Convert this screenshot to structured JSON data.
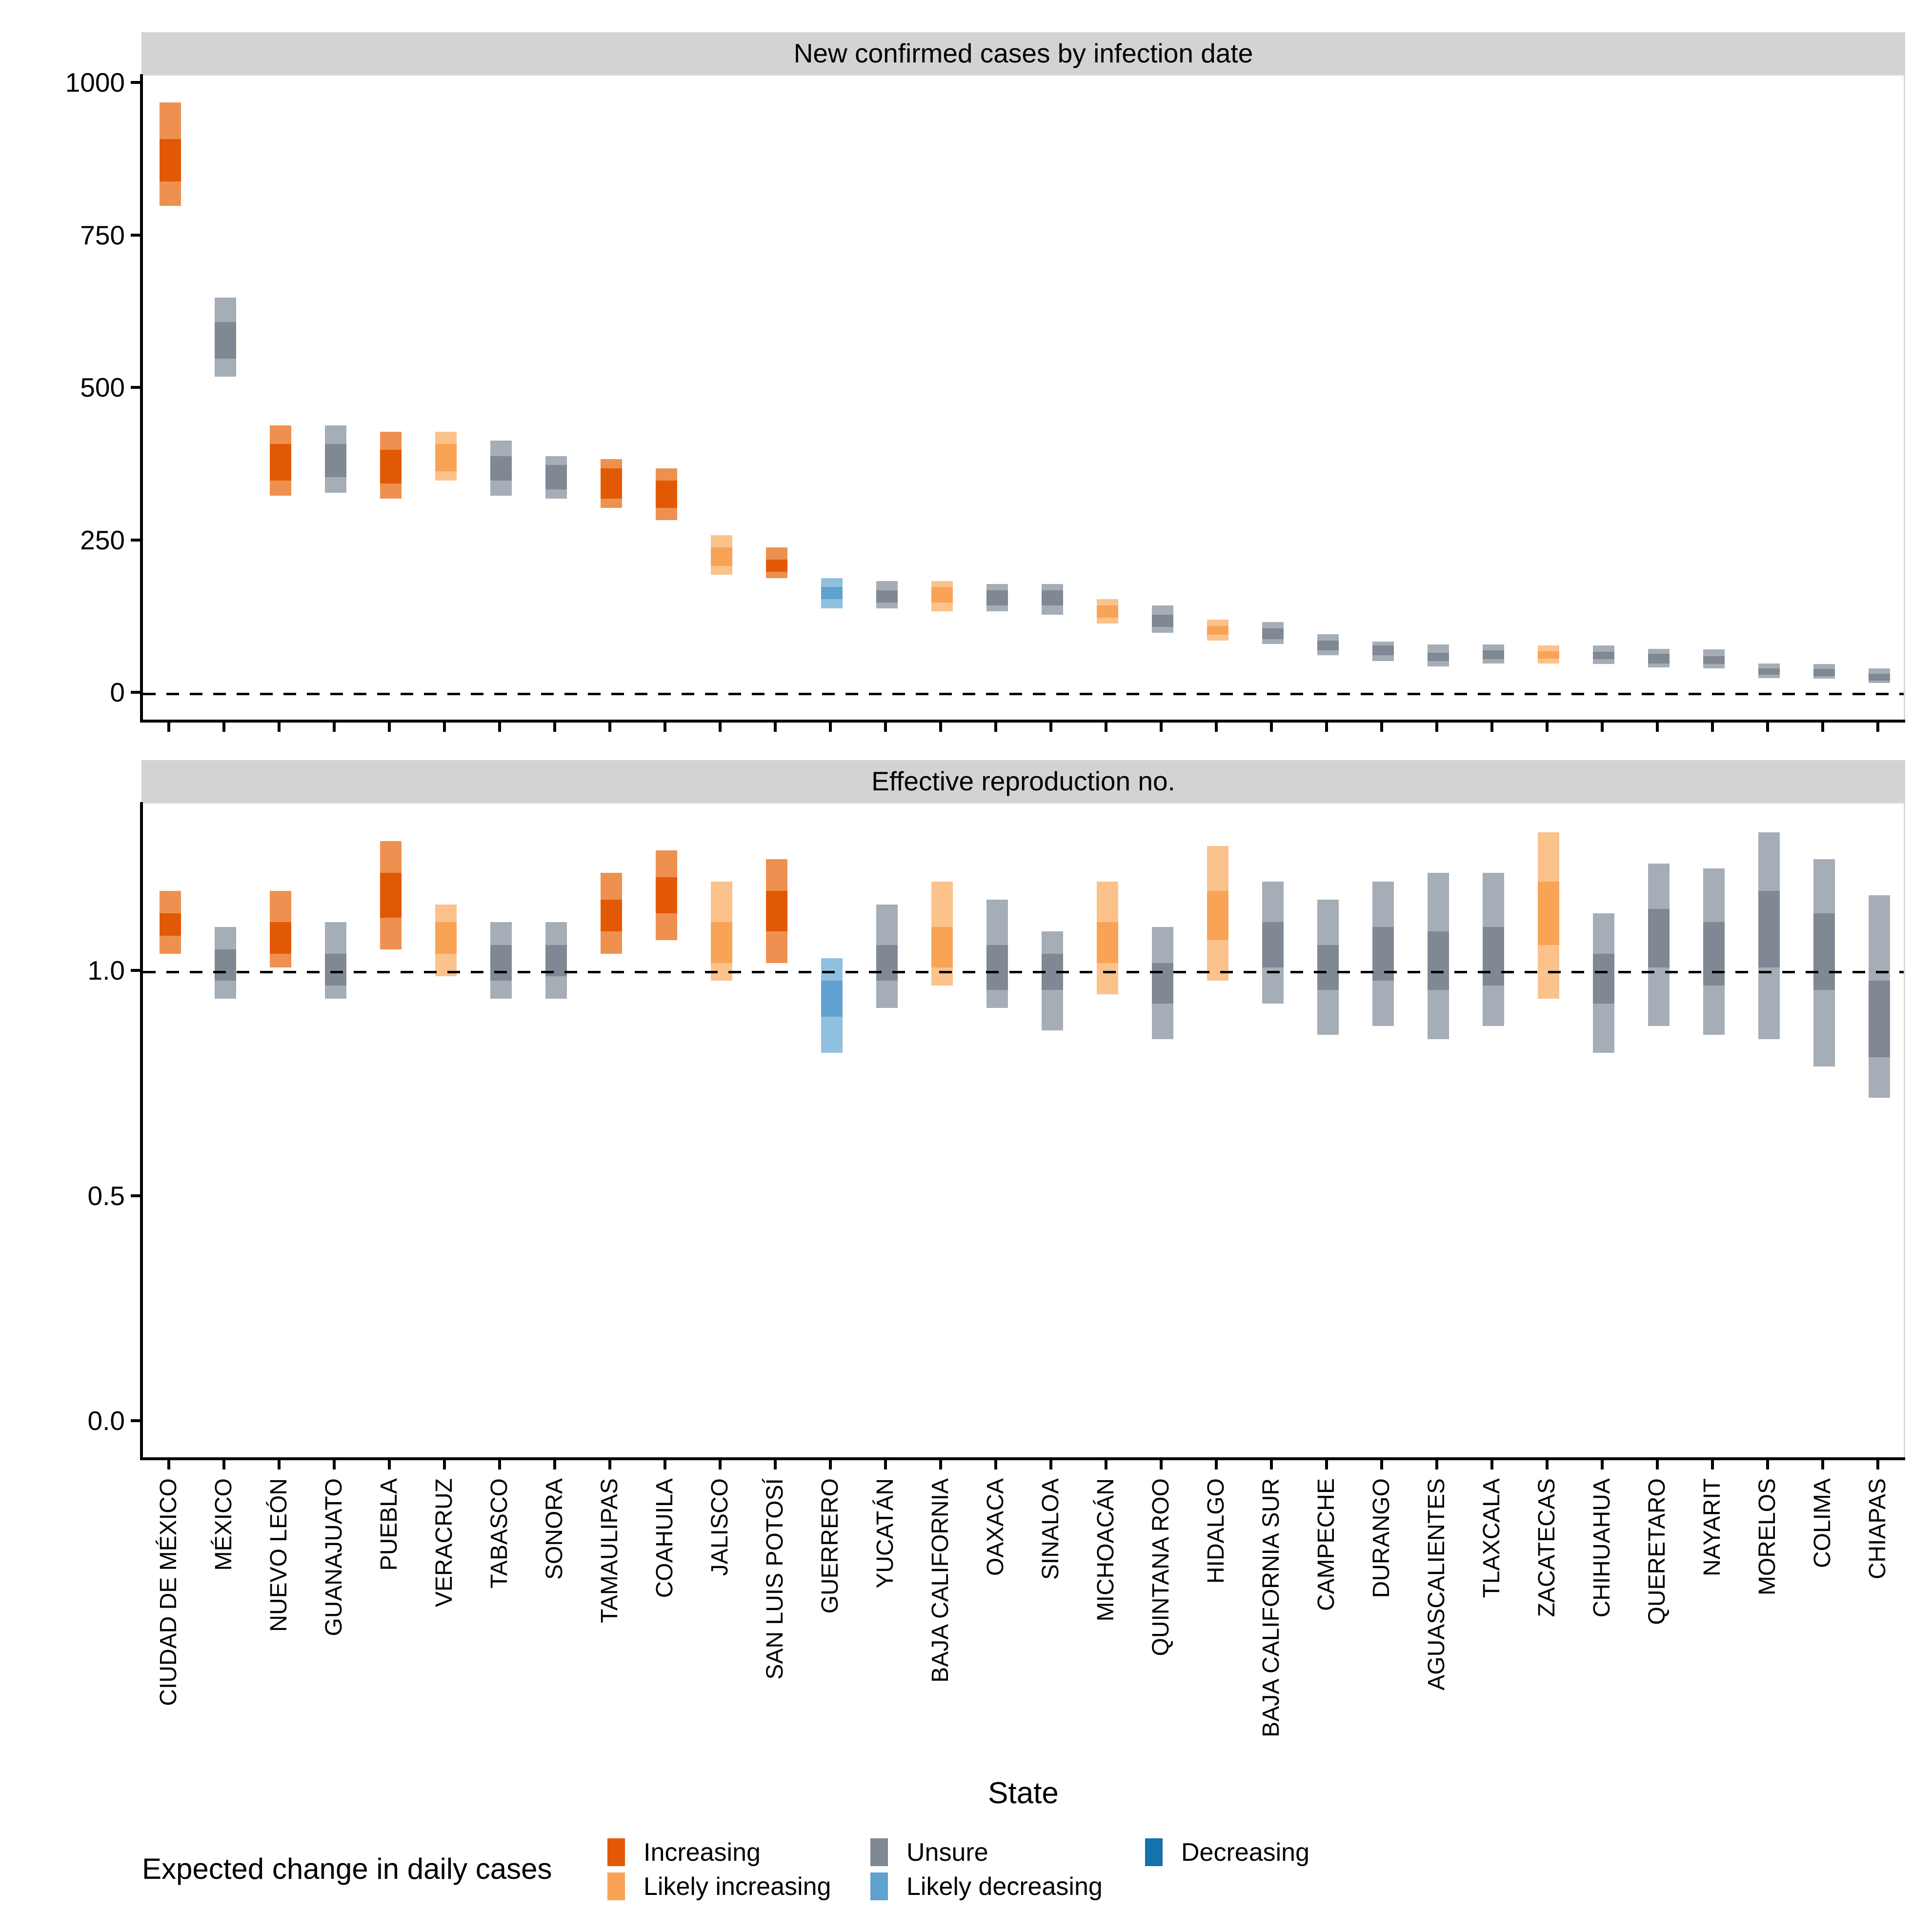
{
  "panels": {
    "cases": {
      "title": "New confirmed cases by infection date",
      "yticks": [
        {
          "label": "1000",
          "v": 1000
        },
        {
          "label": "750",
          "v": 750
        },
        {
          "label": "500",
          "v": 500
        },
        {
          "label": "250",
          "v": 250
        },
        {
          "label": "0",
          "v": 0
        }
      ]
    },
    "rt": {
      "title": "Effective reproduction no.",
      "yticks": [
        {
          "label": "1.0",
          "v": 1.0
        },
        {
          "label": "0.5",
          "v": 0.5
        },
        {
          "label": "0.0",
          "v": 0.0
        }
      ]
    }
  },
  "xaxis": {
    "title": "State"
  },
  "legend": {
    "title": "Expected change in daily cases",
    "items": [
      {
        "label": "Increasing",
        "category": "Increasing",
        "col": 0,
        "row": 0
      },
      {
        "label": "Likely increasing",
        "category": "Likely increasing",
        "col": 0,
        "row": 1
      },
      {
        "label": "Unsure",
        "category": "Unsure",
        "col": 1,
        "row": 0
      },
      {
        "label": "Likely decreasing",
        "category": "Likely decreasing",
        "col": 1,
        "row": 1
      },
      {
        "label": "Decreasing",
        "category": "Decreasing",
        "col": 2,
        "row": 0
      }
    ]
  },
  "categories": {
    "Increasing": {
      "solid": "#E25903",
      "light": "#EE9150"
    },
    "Likely increasing": {
      "solid": "#F9A357",
      "light": "#FBC28B"
    },
    "Unsure": {
      "solid": "#7F8893",
      "light": "#A5ADB6"
    },
    "Likely decreasing": {
      "solid": "#5FA2D0",
      "light": "#90C0E0"
    },
    "Decreasing": {
      "solid": "#1572AB",
      "light": "#7EB3D8"
    }
  },
  "chart_data": {
    "type": "crossbar-interval",
    "grid": false,
    "legend_position": "bottom",
    "xlabel": "State",
    "legend_title": "Expected change in daily cases",
    "trend_levels": [
      "Increasing",
      "Likely increasing",
      "Unsure",
      "Likely decreasing",
      "Decreasing"
    ],
    "panels": [
      {
        "id": "cases",
        "title": "New confirmed cases by infection date",
        "yticks": [
          1000,
          750,
          500,
          250,
          0
        ],
        "ylim": [
          -47,
          1013
        ],
        "dashed_line_at": 0
      },
      {
        "id": "rt",
        "title": "Effective reproduction no.",
        "yticks": [
          1.0,
          0.5,
          0.0
        ],
        "ylim": [
          -0.085,
          1.374
        ],
        "dashed_line_at": 1.0
      }
    ],
    "states": [
      {
        "name": "CIUDAD DE MÉXICO",
        "trend": "Increasing",
        "cases_ci90": [
          800,
          970
        ],
        "cases_ci50": [
          840,
          910
        ],
        "rt_ci90": [
          1.04,
          1.18
        ],
        "rt_ci50": [
          1.08,
          1.13
        ]
      },
      {
        "name": "MÉXICO",
        "trend": "Unsure",
        "cases_ci90": [
          520,
          650
        ],
        "cases_ci50": [
          550,
          610
        ],
        "rt_ci90": [
          0.94,
          1.1
        ],
        "rt_ci50": [
          0.98,
          1.05
        ]
      },
      {
        "name": "NUEVO LEÓN",
        "trend": "Increasing",
        "cases_ci90": [
          325,
          440
        ],
        "cases_ci50": [
          350,
          410
        ],
        "rt_ci90": [
          1.01,
          1.18
        ],
        "rt_ci50": [
          1.04,
          1.11
        ]
      },
      {
        "name": "GUANAJUATO",
        "trend": "Unsure",
        "cases_ci90": [
          330,
          440
        ],
        "cases_ci50": [
          355,
          410
        ],
        "rt_ci90": [
          0.94,
          1.11
        ],
        "rt_ci50": [
          0.97,
          1.04
        ]
      },
      {
        "name": "PUEBLA",
        "trend": "Increasing",
        "cases_ci90": [
          320,
          430
        ],
        "cases_ci50": [
          345,
          400
        ],
        "rt_ci90": [
          1.05,
          1.29
        ],
        "rt_ci50": [
          1.12,
          1.22
        ]
      },
      {
        "name": "VERACRUZ",
        "trend": "Likely increasing",
        "cases_ci90": [
          350,
          430
        ],
        "cases_ci50": [
          365,
          410
        ],
        "rt_ci90": [
          0.99,
          1.15
        ],
        "rt_ci50": [
          1.04,
          1.11
        ]
      },
      {
        "name": "TABASCO",
        "trend": "Unsure",
        "cases_ci90": [
          325,
          415
        ],
        "cases_ci50": [
          350,
          390
        ],
        "rt_ci90": [
          0.94,
          1.11
        ],
        "rt_ci50": [
          0.98,
          1.06
        ]
      },
      {
        "name": "SONORA",
        "trend": "Unsure",
        "cases_ci90": [
          320,
          390
        ],
        "cases_ci50": [
          335,
          375
        ],
        "rt_ci90": [
          0.94,
          1.11
        ],
        "rt_ci50": [
          0.99,
          1.06
        ]
      },
      {
        "name": "TAMAULIPAS",
        "trend": "Increasing",
        "cases_ci90": [
          305,
          385
        ],
        "cases_ci50": [
          320,
          370
        ],
        "rt_ci90": [
          1.04,
          1.22
        ],
        "rt_ci50": [
          1.09,
          1.16
        ]
      },
      {
        "name": "COAHUILA",
        "trend": "Increasing",
        "cases_ci90": [
          285,
          370
        ],
        "cases_ci50": [
          305,
          350
        ],
        "rt_ci90": [
          1.07,
          1.27
        ],
        "rt_ci50": [
          1.13,
          1.21
        ]
      },
      {
        "name": "JALISCO",
        "trend": "Likely increasing",
        "cases_ci90": [
          195,
          260
        ],
        "cases_ci50": [
          210,
          240
        ],
        "rt_ci90": [
          0.98,
          1.2
        ],
        "rt_ci50": [
          1.02,
          1.11
        ]
      },
      {
        "name": "SAN LUIS POTOSÍ",
        "trend": "Increasing",
        "cases_ci90": [
          190,
          240
        ],
        "cases_ci50": [
          200,
          220
        ],
        "rt_ci90": [
          1.02,
          1.25
        ],
        "rt_ci50": [
          1.09,
          1.18
        ]
      },
      {
        "name": "GUERRERO",
        "trend": "Likely decreasing",
        "cases_ci90": [
          140,
          190
        ],
        "cases_ci50": [
          155,
          175
        ],
        "rt_ci90": [
          0.82,
          1.03
        ],
        "rt_ci50": [
          0.9,
          0.98
        ]
      },
      {
        "name": "YUCATÁN",
        "trend": "Unsure",
        "cases_ci90": [
          140,
          185
        ],
        "cases_ci50": [
          150,
          170
        ],
        "rt_ci90": [
          0.92,
          1.15
        ],
        "rt_ci50": [
          0.98,
          1.06
        ]
      },
      {
        "name": "BAJA CALIFORNIA",
        "trend": "Likely increasing",
        "cases_ci90": [
          135,
          185
        ],
        "cases_ci50": [
          150,
          175
        ],
        "rt_ci90": [
          0.97,
          1.2
        ],
        "rt_ci50": [
          1.01,
          1.1
        ]
      },
      {
        "name": "OAXACA",
        "trend": "Unsure",
        "cases_ci90": [
          135,
          180
        ],
        "cases_ci50": [
          145,
          170
        ],
        "rt_ci90": [
          0.92,
          1.16
        ],
        "rt_ci50": [
          0.96,
          1.06
        ]
      },
      {
        "name": "SINALOA",
        "trend": "Unsure",
        "cases_ci90": [
          130,
          180
        ],
        "cases_ci50": [
          145,
          170
        ],
        "rt_ci90": [
          0.87,
          1.09
        ],
        "rt_ci50": [
          0.96,
          1.04
        ]
      },
      {
        "name": "MICHOACÁN",
        "trend": "Likely increasing",
        "cases_ci90": [
          115,
          155
        ],
        "cases_ci50": [
          125,
          145
        ],
        "rt_ci90": [
          0.95,
          1.2
        ],
        "rt_ci50": [
          1.02,
          1.11
        ]
      },
      {
        "name": "QUINTANA ROO",
        "trend": "Unsure",
        "cases_ci90": [
          100,
          145
        ],
        "cases_ci50": [
          110,
          130
        ],
        "rt_ci90": [
          0.85,
          1.1
        ],
        "rt_ci50": [
          0.93,
          1.02
        ]
      },
      {
        "name": "HIDALGO",
        "trend": "Likely increasing",
        "cases_ci90": [
          87,
          122
        ],
        "cases_ci50": [
          97,
          111
        ],
        "rt_ci90": [
          0.98,
          1.28
        ],
        "rt_ci50": [
          1.07,
          1.18
        ]
      },
      {
        "name": "BAJA CALIFORNIA SUR",
        "trend": "Unsure",
        "cases_ci90": [
          82,
          118
        ],
        "cases_ci50": [
          90,
          107
        ],
        "rt_ci90": [
          0.93,
          1.2
        ],
        "rt_ci50": [
          1.01,
          1.11
        ]
      },
      {
        "name": "CAMPECHE",
        "trend": "Unsure",
        "cases_ci90": [
          63,
          98
        ],
        "cases_ci50": [
          71,
          87
        ],
        "rt_ci90": [
          0.86,
          1.16
        ],
        "rt_ci50": [
          0.96,
          1.06
        ]
      },
      {
        "name": "DURANGO",
        "trend": "Unsure",
        "cases_ci90": [
          54,
          86
        ],
        "cases_ci50": [
          63,
          79
        ],
        "rt_ci90": [
          0.88,
          1.2
        ],
        "rt_ci50": [
          0.98,
          1.1
        ]
      },
      {
        "name": "AGUASCALIENTES",
        "trend": "Unsure",
        "cases_ci90": [
          45,
          81
        ],
        "cases_ci50": [
          54,
          67
        ],
        "rt_ci90": [
          0.85,
          1.22
        ],
        "rt_ci50": [
          0.96,
          1.09
        ]
      },
      {
        "name": "TLAXCALA",
        "trend": "Unsure",
        "cases_ci90": [
          50,
          81
        ],
        "cases_ci50": [
          57,
          71
        ],
        "rt_ci90": [
          0.88,
          1.22
        ],
        "rt_ci50": [
          0.97,
          1.1
        ]
      },
      {
        "name": "ZACATECAS",
        "trend": "Likely increasing",
        "cases_ci90": [
          50,
          79
        ],
        "cases_ci50": [
          58,
          70
        ],
        "rt_ci90": [
          0.94,
          1.31
        ],
        "rt_ci50": [
          1.06,
          1.2
        ]
      },
      {
        "name": "CHIHUAHUA",
        "trend": "Unsure",
        "cases_ci90": [
          49,
          79
        ],
        "cases_ci50": [
          57,
          69
        ],
        "rt_ci90": [
          0.82,
          1.13
        ],
        "rt_ci50": [
          0.93,
          1.04
        ]
      },
      {
        "name": "QUERETARO",
        "trend": "Unsure",
        "cases_ci90": [
          43,
          74
        ],
        "cases_ci50": [
          50,
          66
        ],
        "rt_ci90": [
          0.88,
          1.24
        ],
        "rt_ci50": [
          1.01,
          1.14
        ]
      },
      {
        "name": "NAYARIT",
        "trend": "Unsure",
        "cases_ci90": [
          42,
          73
        ],
        "cases_ci50": [
          49,
          62
        ],
        "rt_ci90": [
          0.86,
          1.23
        ],
        "rt_ci50": [
          0.97,
          1.11
        ]
      },
      {
        "name": "MORELOS",
        "trend": "Unsure",
        "cases_ci90": [
          26,
          50
        ],
        "cases_ci50": [
          31,
          42
        ],
        "rt_ci90": [
          0.85,
          1.31
        ],
        "rt_ci50": [
          1.01,
          1.18
        ]
      },
      {
        "name": "COLIMA",
        "trend": "Unsure",
        "cases_ci90": [
          25,
          49
        ],
        "cases_ci50": [
          29,
          41
        ],
        "rt_ci90": [
          0.79,
          1.25
        ],
        "rt_ci50": [
          0.96,
          1.13
        ]
      },
      {
        "name": "CHIAPAS",
        "trend": "Unsure",
        "cases_ci90": [
          18,
          42
        ],
        "cases_ci50": [
          22,
          33
        ],
        "rt_ci90": [
          0.72,
          1.17
        ],
        "rt_ci50": [
          0.81,
          0.98
        ]
      }
    ]
  }
}
